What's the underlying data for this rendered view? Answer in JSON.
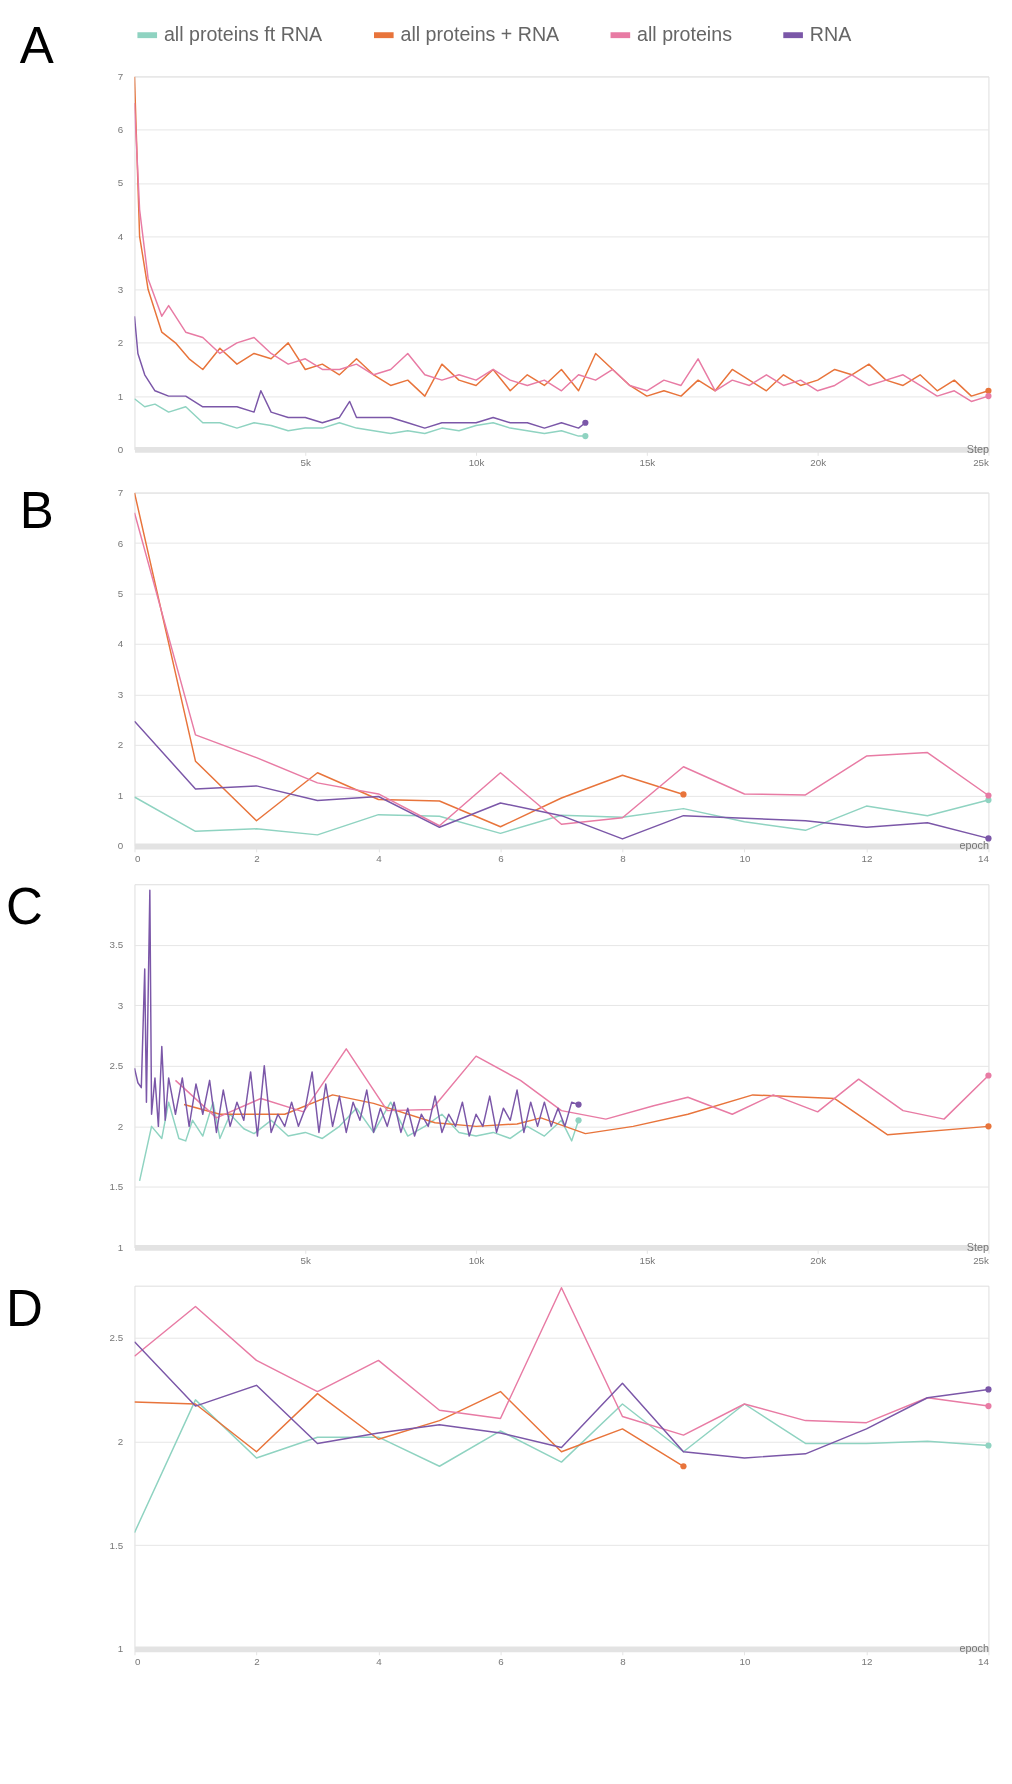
{
  "chart_data": [
    {
      "type": "line",
      "title": "A",
      "xlabel": "Step",
      "legend": "top",
      "grid": "y",
      "xlim": [
        0,
        25000
      ],
      "ylim": [
        0,
        7
      ],
      "xticks": [
        {
          "value": 5000,
          "label": "5k"
        },
        {
          "value": 10000,
          "label": "10k"
        },
        {
          "value": 15000,
          "label": "15k"
        },
        {
          "value": 20000,
          "label": "20k"
        },
        {
          "value": 25000,
          "label": "25k"
        }
      ],
      "yticks": [
        0,
        1,
        2,
        3,
        4,
        5,
        6,
        7
      ],
      "series": [
        {
          "name": "all proteins ft RNA",
          "color": "#8fd3c1",
          "x": [
            0,
            300,
            600,
            1000,
            1500,
            2000,
            2500,
            3000,
            3500,
            4000,
            4500,
            5000,
            5500,
            6000,
            6500,
            7000,
            7500,
            8000,
            8500,
            9000,
            9500,
            10000,
            10500,
            11000,
            11500,
            12000,
            12500,
            13000,
            13200
          ],
          "values": [
            0.95,
            0.8,
            0.85,
            0.7,
            0.8,
            0.5,
            0.5,
            0.4,
            0.5,
            0.45,
            0.35,
            0.4,
            0.4,
            0.5,
            0.4,
            0.35,
            0.3,
            0.35,
            0.3,
            0.4,
            0.35,
            0.45,
            0.5,
            0.4,
            0.35,
            0.3,
            0.35,
            0.25,
            0.25
          ]
        },
        {
          "name": "all proteins + RNA",
          "color": "#e8743b",
          "x": [
            0,
            150,
            400,
            800,
            1200,
            1600,
            2000,
            2500,
            3000,
            3500,
            4000,
            4500,
            5000,
            5500,
            6000,
            6500,
            7000,
            7500,
            8000,
            8500,
            9000,
            9500,
            10000,
            10500,
            11000,
            11500,
            12000,
            12500,
            13000,
            13500,
            14000,
            14500,
            15000,
            15500,
            16000,
            16500,
            17000,
            17500,
            18000,
            18500,
            19000,
            19500,
            20000,
            20500,
            21000,
            21500,
            22000,
            22500,
            23000,
            23500,
            24000,
            24500,
            25000
          ],
          "values": [
            7.0,
            4.0,
            3.0,
            2.2,
            2.0,
            1.7,
            1.5,
            1.9,
            1.6,
            1.8,
            1.7,
            2.0,
            1.5,
            1.6,
            1.4,
            1.7,
            1.4,
            1.2,
            1.3,
            1.0,
            1.6,
            1.3,
            1.2,
            1.5,
            1.1,
            1.4,
            1.2,
            1.5,
            1.1,
            1.8,
            1.5,
            1.2,
            1.0,
            1.1,
            1.0,
            1.3,
            1.1,
            1.5,
            1.3,
            1.1,
            1.4,
            1.2,
            1.3,
            1.5,
            1.4,
            1.6,
            1.3,
            1.2,
            1.4,
            1.1,
            1.3,
            1.0,
            1.1
          ]
        },
        {
          "name": "all proteins",
          "color": "#e87ba4",
          "x": [
            0,
            150,
            400,
            800,
            1000,
            1500,
            2000,
            2500,
            3000,
            3500,
            4000,
            4500,
            5000,
            5500,
            6000,
            6500,
            7000,
            7500,
            8000,
            8500,
            9000,
            9500,
            10000,
            10500,
            11000,
            11500,
            12000,
            12500,
            13000,
            13500,
            14000,
            14500,
            15000,
            15500,
            16000,
            16500,
            17000,
            17500,
            18000,
            18500,
            19000,
            19500,
            20000,
            20500,
            21000,
            21500,
            22000,
            22500,
            23000,
            23500,
            24000,
            24500,
            25000
          ],
          "values": [
            6.5,
            4.5,
            3.2,
            2.5,
            2.7,
            2.2,
            2.1,
            1.8,
            2.0,
            2.1,
            1.8,
            1.6,
            1.7,
            1.5,
            1.5,
            1.6,
            1.4,
            1.5,
            1.8,
            1.4,
            1.3,
            1.4,
            1.3,
            1.5,
            1.3,
            1.2,
            1.3,
            1.1,
            1.4,
            1.3,
            1.5,
            1.2,
            1.1,
            1.3,
            1.2,
            1.7,
            1.1,
            1.3,
            1.2,
            1.4,
            1.2,
            1.3,
            1.1,
            1.2,
            1.4,
            1.2,
            1.3,
            1.4,
            1.2,
            1.0,
            1.1,
            0.9,
            1.0
          ]
        },
        {
          "name": "RNA",
          "color": "#7b57a8",
          "x": [
            0,
            100,
            300,
            600,
            1000,
            1500,
            2000,
            2500,
            3000,
            3500,
            3700,
            4000,
            4500,
            5000,
            5500,
            6000,
            6300,
            6500,
            7000,
            7500,
            8000,
            8500,
            9000,
            9500,
            10000,
            10500,
            11000,
            11500,
            12000,
            12500,
            13000,
            13200
          ],
          "values": [
            2.5,
            1.8,
            1.4,
            1.1,
            1.0,
            1.0,
            0.8,
            0.8,
            0.8,
            0.7,
            1.1,
            0.7,
            0.6,
            0.6,
            0.5,
            0.6,
            0.9,
            0.6,
            0.6,
            0.6,
            0.5,
            0.4,
            0.5,
            0.5,
            0.5,
            0.6,
            0.5,
            0.5,
            0.4,
            0.5,
            0.4,
            0.5
          ]
        }
      ]
    },
    {
      "type": "line",
      "title": "B",
      "xlabel": "epoch",
      "grid": "y",
      "xlim": [
        0,
        14
      ],
      "ylim": [
        0,
        7
      ],
      "xticks": [
        0,
        2,
        4,
        6,
        8,
        10,
        12,
        14
      ],
      "yticks": [
        0,
        1,
        2,
        3,
        4,
        5,
        6,
        7
      ],
      "x": [
        0,
        1,
        2,
        3,
        4,
        5,
        6,
        7,
        8,
        9,
        10,
        11,
        12,
        13,
        14
      ],
      "series": [
        {
          "color": "#8fd3c1",
          "values": [
            0.97,
            0.29,
            0.34,
            0.22,
            0.62,
            0.59,
            0.25,
            0.61,
            0.57,
            0.74,
            0.48,
            0.31,
            0.79,
            0.6,
            0.91
          ]
        },
        {
          "color": "#e8743b",
          "x": [
            0,
            1,
            2,
            3,
            4,
            5,
            6,
            7,
            8,
            9
          ],
          "values": [
            7.0,
            1.68,
            0.5,
            1.45,
            0.92,
            0.89,
            0.38,
            0.95,
            1.4,
            1.02
          ]
        },
        {
          "color": "#e87ba4",
          "values": [
            6.6,
            2.2,
            1.75,
            1.25,
            1.03,
            0.4,
            1.45,
            0.43,
            0.56,
            1.57,
            1.03,
            1.01,
            1.78,
            1.85,
            1.0
          ]
        },
        {
          "color": "#7b57a8",
          "values": [
            2.47,
            1.13,
            1.19,
            0.9,
            0.98,
            0.37,
            0.85,
            0.6,
            0.14,
            0.6,
            0.55,
            0.5,
            0.37,
            0.46,
            0.15
          ]
        }
      ]
    },
    {
      "type": "line",
      "title": "C",
      "xlabel": "Step",
      "grid": "y",
      "xlim": [
        0,
        25000
      ],
      "ylim": [
        1,
        4
      ],
      "xticks": [
        {
          "value": 5000,
          "label": "5k"
        },
        {
          "value": 10000,
          "label": "10k"
        },
        {
          "value": 15000,
          "label": "15k"
        },
        {
          "value": 20000,
          "label": "20k"
        },
        {
          "value": 25000,
          "label": "25k"
        }
      ],
      "yticks": [
        1,
        1.5,
        2,
        2.5,
        3,
        3.5
      ],
      "series": [
        {
          "color": "#8fd3c1",
          "x": [
            150,
            500,
            800,
            1000,
            1300,
            1500,
            1700,
            2000,
            2300,
            2500,
            2800,
            3200,
            3500,
            4000,
            4500,
            5000,
            5500,
            6000,
            6500,
            7000,
            7500,
            8000,
            8500,
            9000,
            9500,
            10000,
            10500,
            11000,
            11500,
            12000,
            12500,
            12800,
            13000
          ],
          "values": [
            1.55,
            2.0,
            1.9,
            2.2,
            1.9,
            1.88,
            2.05,
            1.92,
            2.2,
            1.9,
            2.1,
            1.98,
            1.94,
            2.05,
            1.92,
            1.95,
            1.9,
            2.0,
            2.15,
            1.95,
            2.2,
            1.92,
            2.0,
            2.1,
            1.95,
            1.92,
            1.95,
            1.9,
            2.0,
            1.92,
            2.05,
            1.88,
            2.05
          ]
        },
        {
          "color": "#e8743b",
          "x": [
            1450,
            2500,
            4400,
            5800,
            7000,
            8800,
            10000,
            11200,
            11900,
            13200,
            14600,
            16200,
            18100,
            20500,
            22050,
            25000
          ],
          "values": [
            2.18,
            2.1,
            2.1,
            2.26,
            2.19,
            2.03,
            2.0,
            2.02,
            2.07,
            1.94,
            2.0,
            2.1,
            2.26,
            2.23,
            1.93,
            2.0
          ]
        },
        {
          "color": "#e87ba4",
          "x": [
            1200,
            2400,
            3700,
            4950,
            6200,
            7400,
            8700,
            10000,
            11300,
            12500,
            13800,
            15200,
            16200,
            17500,
            18700,
            20000,
            21200,
            22500,
            23700,
            25000
          ],
          "values": [
            2.38,
            2.07,
            2.23,
            2.12,
            2.64,
            2.13,
            2.14,
            2.58,
            2.38,
            2.13,
            2.06,
            2.17,
            2.24,
            2.1,
            2.26,
            2.12,
            2.39,
            2.13,
            2.06,
            2.42
          ]
        },
        {
          "color": "#7b57a8",
          "x": [
            0,
            100,
            200,
            300,
            350,
            450,
            500,
            600,
            700,
            800,
            900,
            1000,
            1200,
            1400,
            1600,
            1800,
            2000,
            2200,
            2400,
            2600,
            2800,
            3000,
            3200,
            3400,
            3600,
            3800,
            4000,
            4200,
            4400,
            4600,
            4800,
            5000,
            5200,
            5400,
            5600,
            5800,
            6000,
            6200,
            6400,
            6600,
            6800,
            7000,
            7200,
            7400,
            7600,
            7800,
            8000,
            8200,
            8400,
            8600,
            8800,
            9000,
            9200,
            9400,
            9600,
            9800,
            10000,
            10200,
            10400,
            10600,
            10800,
            11000,
            11200,
            11400,
            11600,
            11800,
            12000,
            12200,
            12400,
            12600,
            12800,
            13000
          ],
          "values": [
            2.48,
            2.36,
            2.32,
            3.3,
            2.2,
            3.95,
            2.1,
            2.4,
            2.0,
            2.66,
            2.05,
            2.4,
            2.1,
            2.4,
            2.0,
            2.35,
            2.1,
            2.38,
            1.95,
            2.3,
            2.0,
            2.2,
            2.05,
            2.45,
            1.92,
            2.5,
            1.95,
            2.1,
            2.0,
            2.2,
            2.0,
            2.15,
            2.45,
            1.95,
            2.35,
            2.0,
            2.25,
            1.95,
            2.2,
            2.05,
            2.3,
            1.95,
            2.15,
            2.0,
            2.2,
            1.95,
            2.15,
            1.92,
            2.1,
            2.0,
            2.25,
            1.95,
            2.1,
            2.0,
            2.2,
            1.92,
            2.1,
            2.0,
            2.25,
            1.95,
            2.15,
            2.05,
            2.3,
            1.95,
            2.2,
            2.0,
            2.2,
            2.0,
            2.15,
            2.0,
            2.2,
            2.18
          ]
        }
      ]
    },
    {
      "type": "line",
      "title": "D",
      "xlabel": "epoch",
      "grid": "y",
      "xlim": [
        0,
        14
      ],
      "ylim": [
        1,
        2.75
      ],
      "xticks": [
        0,
        2,
        4,
        6,
        8,
        10,
        12,
        14
      ],
      "yticks": [
        1,
        1.5,
        2,
        2.5
      ],
      "x": [
        0,
        1,
        2,
        3,
        4,
        5,
        6,
        7,
        8,
        9,
        10,
        11,
        12,
        13,
        14
      ],
      "series": [
        {
          "color": "#8fd3c1",
          "values": [
            1.56,
            2.2,
            1.92,
            2.02,
            2.02,
            1.88,
            2.05,
            1.9,
            2.18,
            1.95,
            2.18,
            1.99,
            1.99,
            2.0,
            1.98
          ]
        },
        {
          "color": "#e8743b",
          "x": [
            0,
            1,
            2,
            3,
            4,
            5,
            6,
            7,
            8,
            9
          ],
          "values": [
            2.19,
            2.18,
            1.95,
            2.23,
            2.01,
            2.1,
            2.24,
            1.95,
            2.06,
            1.88
          ]
        },
        {
          "color": "#e87ba4",
          "values": [
            2.41,
            2.65,
            2.39,
            2.24,
            2.39,
            2.15,
            2.11,
            2.74,
            2.12,
            2.03,
            2.18,
            2.1,
            2.09,
            2.21,
            2.17
          ]
        },
        {
          "color": "#7b57a8",
          "values": [
            2.48,
            2.17,
            2.27,
            1.99,
            2.04,
            2.08,
            2.04,
            1.97,
            2.28,
            1.95,
            1.92,
            1.94,
            2.06,
            2.21,
            2.25
          ]
        }
      ]
    }
  ]
}
